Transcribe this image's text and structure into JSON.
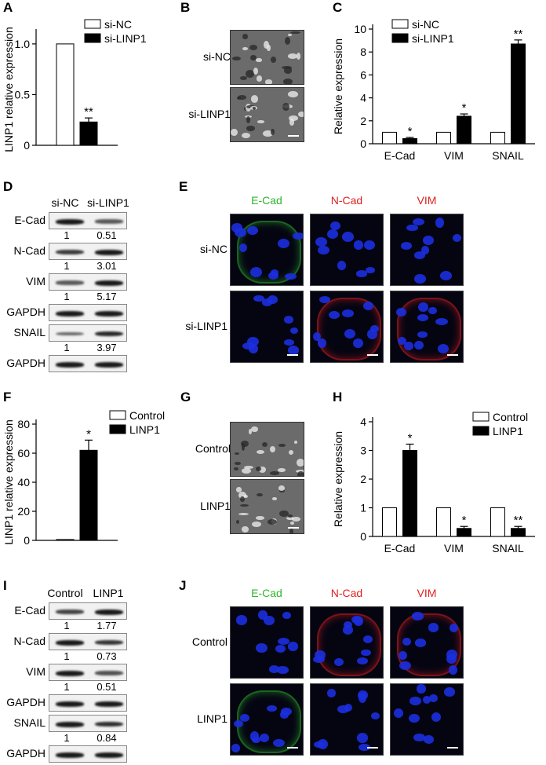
{
  "panels": {
    "A": {
      "label": "A"
    },
    "B": {
      "label": "B"
    },
    "C": {
      "label": "C"
    },
    "D": {
      "label": "D"
    },
    "E": {
      "label": "E"
    },
    "F": {
      "label": "F"
    },
    "G": {
      "label": "G"
    },
    "H": {
      "label": "H"
    },
    "I": {
      "label": "I"
    },
    "J": {
      "label": "J"
    }
  },
  "chart_data": [
    {
      "id": "A",
      "type": "bar",
      "ylabel": "LINP1 relative expression",
      "xlabel": "",
      "ylim": [
        0,
        1.1
      ],
      "yticks": [
        "0",
        "0.5",
        "1.0"
      ],
      "ytick_values": [
        0,
        0.5,
        1.0
      ],
      "series": [
        {
          "name": "si-NC",
          "color": "#ffffff",
          "values": [
            1.0
          ],
          "errors": [
            0
          ],
          "sig": [
            ""
          ]
        },
        {
          "name": "si-LINP1",
          "color": "#000000",
          "values": [
            0.23
          ],
          "errors": [
            0.04
          ],
          "sig": [
            "**"
          ]
        }
      ],
      "categories": [
        ""
      ],
      "legend": "top-right"
    },
    {
      "id": "C",
      "type": "bar",
      "ylabel": "Relative expression",
      "xlabel": "",
      "ylim": [
        0,
        10
      ],
      "yticks": [
        "0",
        "2",
        "4",
        "6",
        "8",
        "10"
      ],
      "ytick_values": [
        0,
        2,
        4,
        6,
        8,
        10
      ],
      "categories": [
        "E-Cad",
        "VIM",
        "SNAIL"
      ],
      "series": [
        {
          "name": "si-NC",
          "color": "#ffffff",
          "values": [
            1,
            1,
            1
          ],
          "errors": [
            0,
            0,
            0
          ],
          "sig": [
            "",
            "",
            ""
          ]
        },
        {
          "name": "si-LINP1",
          "color": "#000000",
          "values": [
            0.45,
            2.4,
            8.7
          ],
          "errors": [
            0.1,
            0.2,
            0.35
          ],
          "sig": [
            "*",
            "*",
            "**"
          ]
        }
      ],
      "legend": "top-left"
    },
    {
      "id": "F",
      "type": "bar",
      "ylabel": "LINP1 relative expression",
      "xlabel": "",
      "ylim": [
        0,
        80
      ],
      "yticks": [
        "0",
        "20",
        "40",
        "60",
        "80"
      ],
      "ytick_values": [
        0,
        20,
        40,
        60,
        80
      ],
      "series": [
        {
          "name": "Control",
          "color": "#ffffff",
          "values": [
            0.6
          ],
          "errors": [
            0
          ],
          "sig": [
            ""
          ]
        },
        {
          "name": "LINP1",
          "color": "#000000",
          "values": [
            62
          ],
          "errors": [
            7
          ],
          "sig": [
            "*"
          ]
        }
      ],
      "categories": [
        ""
      ],
      "legend": "top-right"
    },
    {
      "id": "H",
      "type": "bar",
      "ylabel": "Relative expression",
      "xlabel": "",
      "ylim": [
        0,
        4
      ],
      "yticks": [
        "0",
        "1",
        "2",
        "3",
        "4"
      ],
      "ytick_values": [
        0,
        1,
        2,
        3,
        4
      ],
      "categories": [
        "E-Cad",
        "VIM",
        "SNAIL"
      ],
      "series": [
        {
          "name": "Control",
          "color": "#ffffff",
          "values": [
            1,
            1,
            1
          ],
          "errors": [
            0,
            0,
            0
          ],
          "sig": [
            "",
            "",
            ""
          ]
        },
        {
          "name": "LINP1",
          "color": "#000000",
          "values": [
            3.0,
            0.28,
            0.28
          ],
          "errors": [
            0.22,
            0.07,
            0.07
          ],
          "sig": [
            "*",
            "*",
            "**"
          ]
        }
      ],
      "legend": "top-right"
    }
  ],
  "B": {
    "rows": [
      "si-NC",
      "si-LINP1"
    ]
  },
  "G": {
    "rows": [
      "Control",
      "LINP1"
    ]
  },
  "D": {
    "columns": [
      "si-NC",
      "si-LINP1"
    ],
    "rows": [
      {
        "label": "E-Cad",
        "quant": [
          "1",
          "0.51"
        ],
        "bands": [
          1.0,
          0.55
        ]
      },
      {
        "label": "N-Cad",
        "quant": [
          "1",
          "3.01"
        ],
        "bands": [
          0.75,
          1.0
        ]
      },
      {
        "label": "VIM",
        "quant": [
          "1",
          "5.17"
        ],
        "bands": [
          0.55,
          1.0
        ]
      },
      {
        "label": "GAPDH",
        "quant": [],
        "bands": [
          1.0,
          1.0
        ]
      },
      {
        "label": "SNAIL",
        "quant": [
          "1",
          "3.97"
        ],
        "bands": [
          0.45,
          0.9
        ]
      },
      {
        "label": "GAPDH",
        "quant": [],
        "bands": [
          1.0,
          1.0
        ]
      }
    ]
  },
  "I": {
    "columns": [
      "Control",
      "LINP1"
    ],
    "rows": [
      {
        "label": "E-Cad",
        "quant": [
          "1",
          "1.77"
        ],
        "bands": [
          0.7,
          1.0
        ]
      },
      {
        "label": "N-Cad",
        "quant": [
          "1",
          "0.73"
        ],
        "bands": [
          1.0,
          0.8
        ]
      },
      {
        "label": "VIM",
        "quant": [
          "1",
          "0.51"
        ],
        "bands": [
          1.0,
          0.6
        ]
      },
      {
        "label": "GAPDH",
        "quant": [],
        "bands": [
          1.0,
          1.0
        ]
      },
      {
        "label": "SNAIL",
        "quant": [
          "1",
          "0.84"
        ],
        "bands": [
          1.0,
          0.85
        ]
      },
      {
        "label": "GAPDH",
        "quant": [],
        "bands": [
          1.0,
          1.0
        ]
      }
    ]
  },
  "E": {
    "columns": [
      {
        "label": "E-Cad",
        "color": "#2db52d"
      },
      {
        "label": "N-Cad",
        "color": "#e02020"
      },
      {
        "label": "VIM",
        "color": "#e02020"
      }
    ],
    "rows": [
      "si-NC",
      "si-LINP1"
    ]
  },
  "J": {
    "columns": [
      {
        "label": "E-Cad",
        "color": "#2db52d"
      },
      {
        "label": "N-Cad",
        "color": "#e02020"
      },
      {
        "label": "VIM",
        "color": "#e02020"
      }
    ],
    "rows": [
      "Control",
      "LINP1"
    ]
  }
}
